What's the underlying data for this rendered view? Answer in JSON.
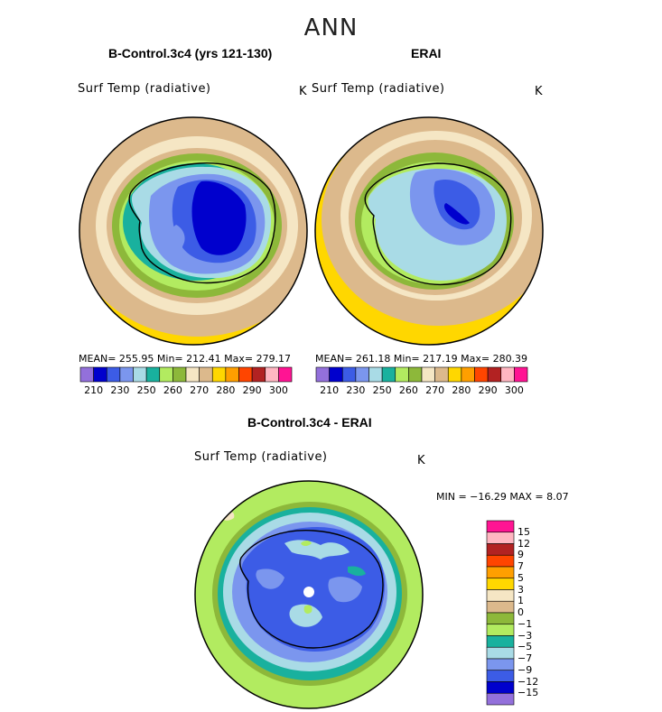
{
  "main_title": "ANN",
  "panels": [
    {
      "title": "B-Control.3c4 (yrs 121-130)",
      "variable": "Surf Temp (radiative)",
      "units": "K",
      "stats": "MEAN= 255.95   Min= 212.41   Max= 279.17"
    },
    {
      "title": "ERAI",
      "variable": "Surf Temp (radiative)",
      "units": "K",
      "stats": "MEAN= 261.18   Min= 217.19   Max= 280.39"
    },
    {
      "title": "B-Control.3c4 - ERAI",
      "variable": "Surf Temp (radiative)",
      "units": "K",
      "stats": "MIN = −16.29  MAX =    8.07"
    }
  ],
  "chart_data": [
    {
      "type": "heatmap",
      "title": "B-Control.3c4 (yrs 121-130)",
      "projection": "south polar stereographic",
      "variable": "Surf Temp (radiative)",
      "units": "K",
      "mean": 255.95,
      "min": 212.41,
      "max": 279.17,
      "levels": [
        210,
        220,
        230,
        240,
        250,
        255,
        260,
        265,
        270,
        275,
        280,
        285,
        290,
        295,
        300
      ],
      "colorbar_tick_labels": [
        "210",
        "230",
        "250",
        "260",
        "270",
        "280",
        "290",
        "300"
      ],
      "colors": [
        "#9370db",
        "#0000cd",
        "#3c5ce6",
        "#7b96ee",
        "#a9dbe6",
        "#19b19e",
        "#b2eb60",
        "#8db83a",
        "#f5e6c4",
        "#dcb98c",
        "#ffd700",
        "#ff9f00",
        "#ff4500",
        "#b22222",
        "#ffb6c1",
        "#ff1493"
      ]
    },
    {
      "type": "heatmap",
      "title": "ERAI",
      "projection": "south polar stereographic",
      "variable": "Surf Temp (radiative)",
      "units": "K",
      "mean": 261.18,
      "min": 217.19,
      "max": 280.39,
      "levels": [
        210,
        220,
        230,
        240,
        250,
        255,
        260,
        265,
        270,
        275,
        280,
        285,
        290,
        295,
        300
      ],
      "colorbar_tick_labels": [
        "210",
        "230",
        "250",
        "260",
        "270",
        "280",
        "290",
        "300"
      ],
      "colors": [
        "#9370db",
        "#0000cd",
        "#3c5ce6",
        "#7b96ee",
        "#a9dbe6",
        "#19b19e",
        "#b2eb60",
        "#8db83a",
        "#f5e6c4",
        "#dcb98c",
        "#ffd700",
        "#ff9f00",
        "#ff4500",
        "#b22222",
        "#ffb6c1",
        "#ff1493"
      ]
    },
    {
      "type": "heatmap",
      "title": "B-Control.3c4 - ERAI",
      "projection": "south polar stereographic",
      "variable": "Surf Temp (radiative)",
      "units": "K",
      "min": -16.29,
      "max": 8.07,
      "colorbar_tick_labels": [
        "15",
        "12",
        "9",
        "7",
        "5",
        "3",
        "1",
        "0",
        "−1",
        "−3",
        "−5",
        "−7",
        "−9",
        "−12",
        "−15"
      ],
      "colors_top_to_bottom": [
        "#ff1493",
        "#ffb6c1",
        "#b22222",
        "#ff4500",
        "#ff9f00",
        "#ffd700",
        "#f5e6c4",
        "#dcb98c",
        "#8db83a",
        "#b2eb60",
        "#19b19e",
        "#a9dbe6",
        "#7b96ee",
        "#3c5ce6",
        "#0000cd",
        "#9370db"
      ]
    }
  ]
}
